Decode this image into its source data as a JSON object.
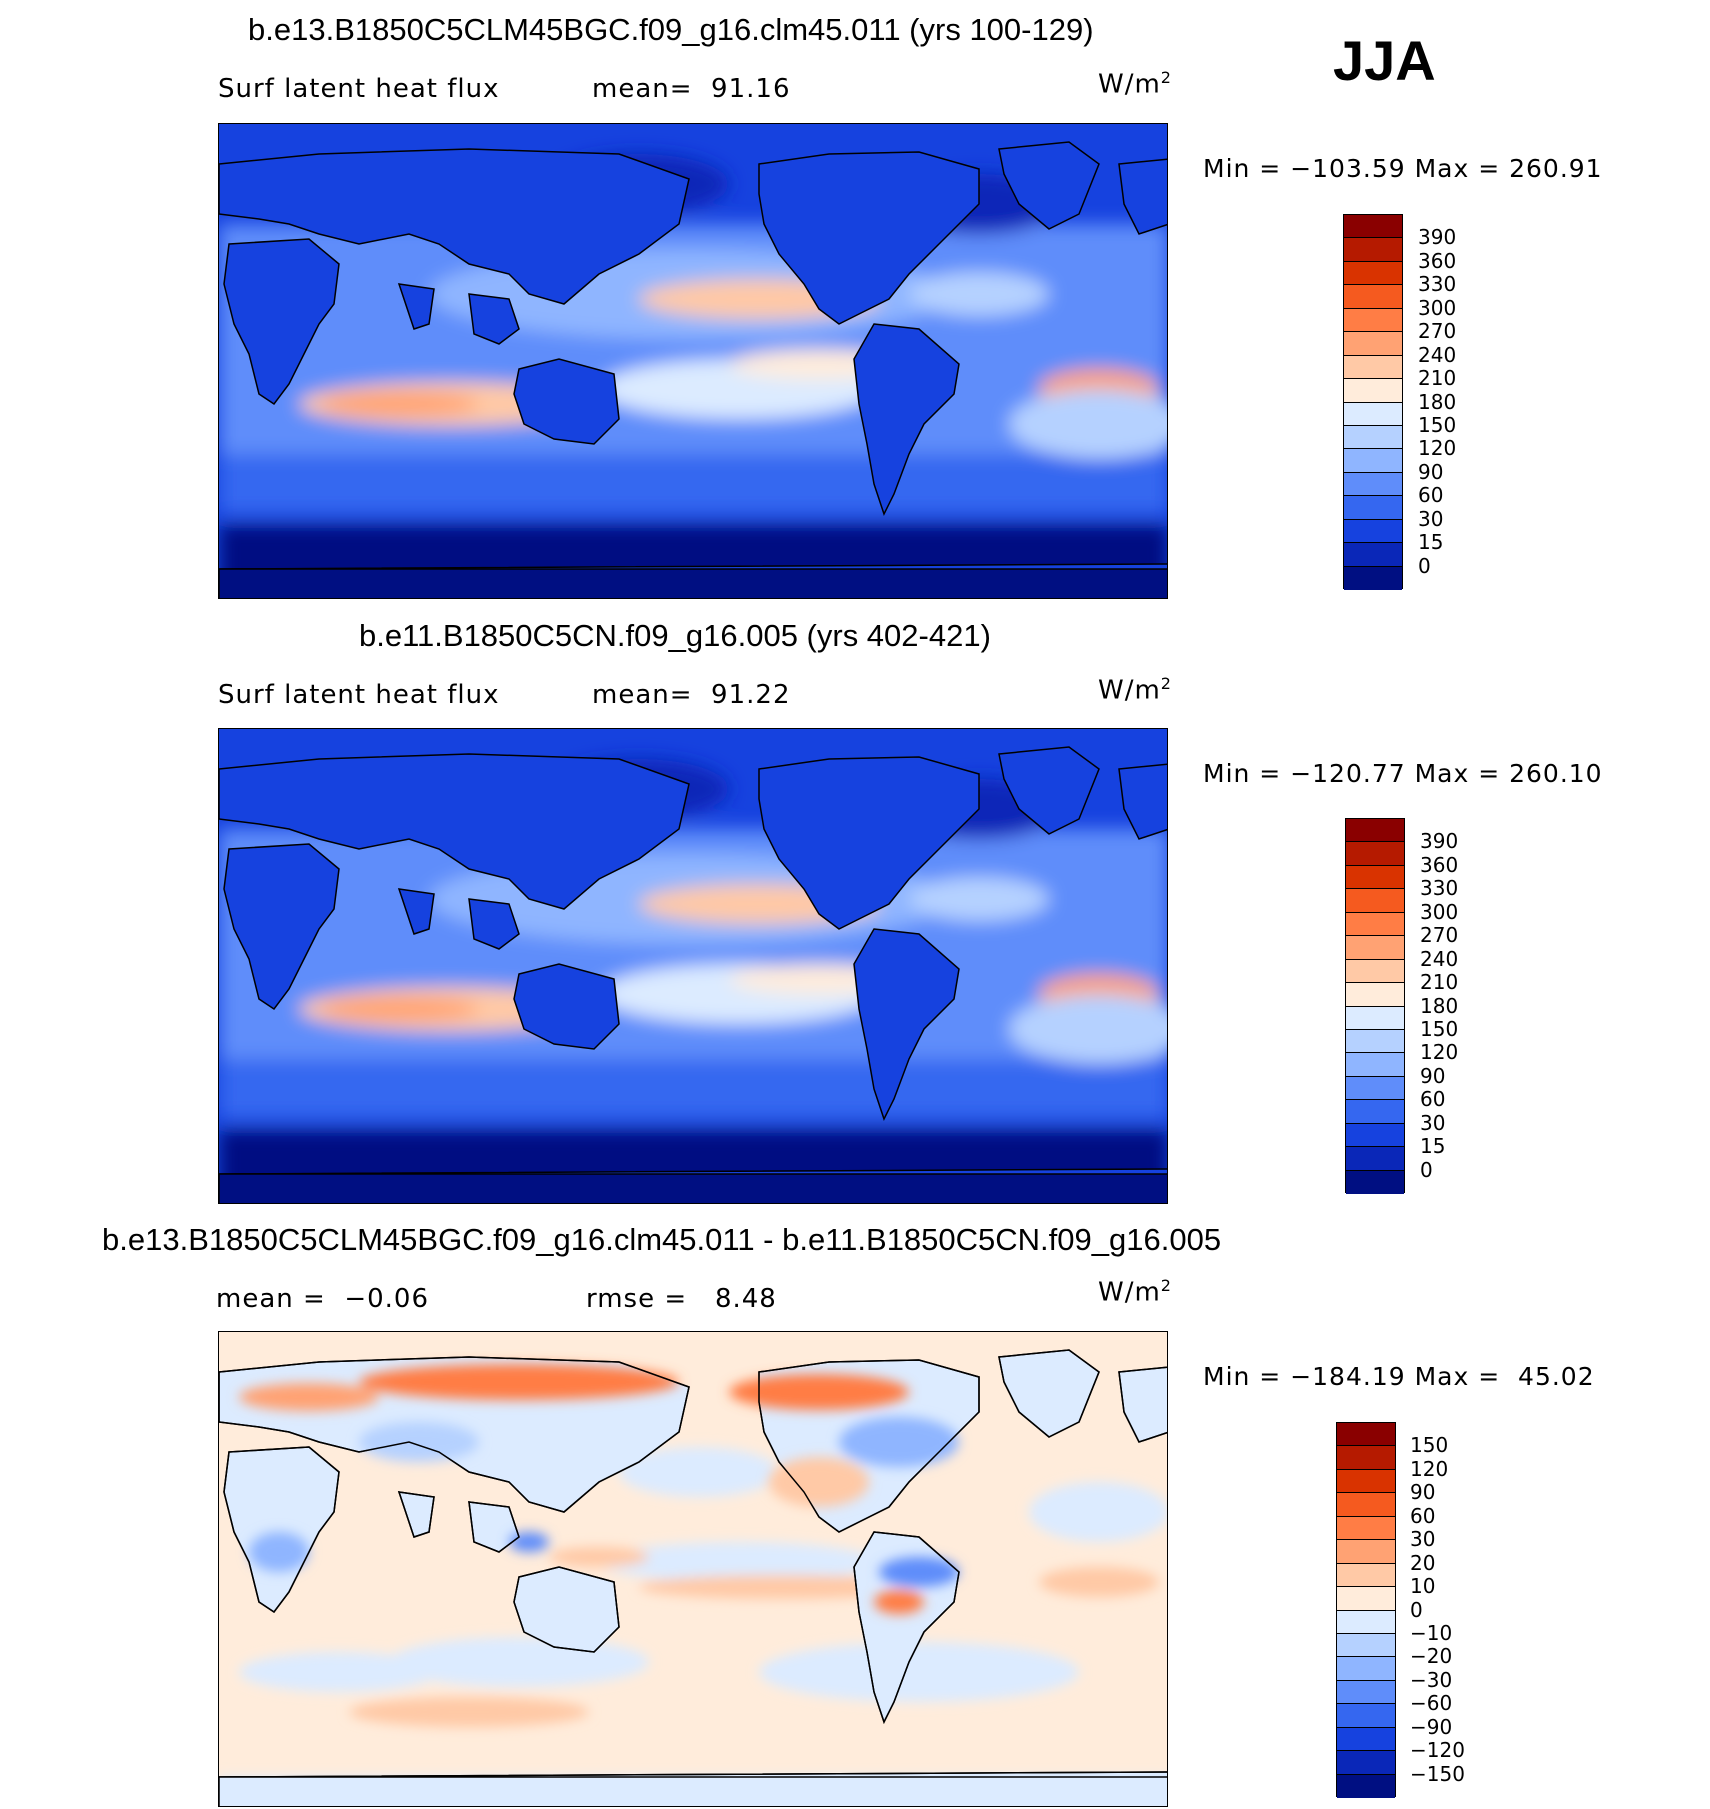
{
  "season": "JJA",
  "panels": [
    {
      "id": "p1",
      "title": "b.e13.B1850C5CLM45BGC.f09_g16.clm45.011 (yrs 100-129)",
      "variable": "Surf latent heat flux",
      "stat_text": "mean=  91.16",
      "units_base": "W/m",
      "units_exp": "2",
      "minmax": "Min = −103.59 Max = 260.91",
      "colorbar": {
        "labels": [
          "390",
          "360",
          "330",
          "300",
          "270",
          "240",
          "210",
          "180",
          "150",
          "120",
          "90",
          "60",
          "30",
          "15",
          "0"
        ],
        "colors": [
          "#8a0000",
          "#b51a00",
          "#d93300",
          "#f55a1f",
          "#ff7d45",
          "#ffa273",
          "#ffc9a6",
          "#ffecdb",
          "#dcebff",
          "#b5d1ff",
          "#8fb5ff",
          "#5f8dfa",
          "#3567f0",
          "#1642df",
          "#0a27b8",
          "#000f82"
        ]
      }
    },
    {
      "id": "p2",
      "title": "b.e11.B1850C5CN.f09_g16.005 (yrs 402-421)",
      "variable": "Surf latent heat flux",
      "stat_text": "mean=  91.22",
      "units_base": "W/m",
      "units_exp": "2",
      "minmax": "Min = −120.77 Max = 260.10",
      "colorbar": {
        "labels": [
          "390",
          "360",
          "330",
          "300",
          "270",
          "240",
          "210",
          "180",
          "150",
          "120",
          "90",
          "60",
          "30",
          "15",
          "0"
        ],
        "colors": [
          "#8a0000",
          "#b51a00",
          "#d93300",
          "#f55a1f",
          "#ff7d45",
          "#ffa273",
          "#ffc9a6",
          "#ffecdb",
          "#dcebff",
          "#b5d1ff",
          "#8fb5ff",
          "#5f8dfa",
          "#3567f0",
          "#1642df",
          "#0a27b8",
          "#000f82"
        ]
      }
    },
    {
      "id": "p3",
      "title": "b.e13.B1850C5CLM45BGC.f09_g16.clm45.011 - b.e11.B1850C5CN.f09_g16.005",
      "stat_left": "mean =  −0.06",
      "stat_right": "rmse =   8.48",
      "units_base": "W/m",
      "units_exp": "2",
      "minmax": "Min = −184.19 Max =  45.02",
      "colorbar": {
        "labels": [
          "150",
          "120",
          "90",
          "60",
          "30",
          "20",
          "10",
          "0",
          "−10",
          "−20",
          "−30",
          "−60",
          "−90",
          "−120",
          "−150"
        ],
        "colors": [
          "#8a0000",
          "#b51a00",
          "#d93300",
          "#f55a1f",
          "#ff7d45",
          "#ffa273",
          "#ffc9a6",
          "#ffecdb",
          "#dcebff",
          "#b5d1ff",
          "#8fb5ff",
          "#5f8dfa",
          "#3567f0",
          "#1642df",
          "#0a27b8",
          "#000f82"
        ]
      }
    }
  ]
}
